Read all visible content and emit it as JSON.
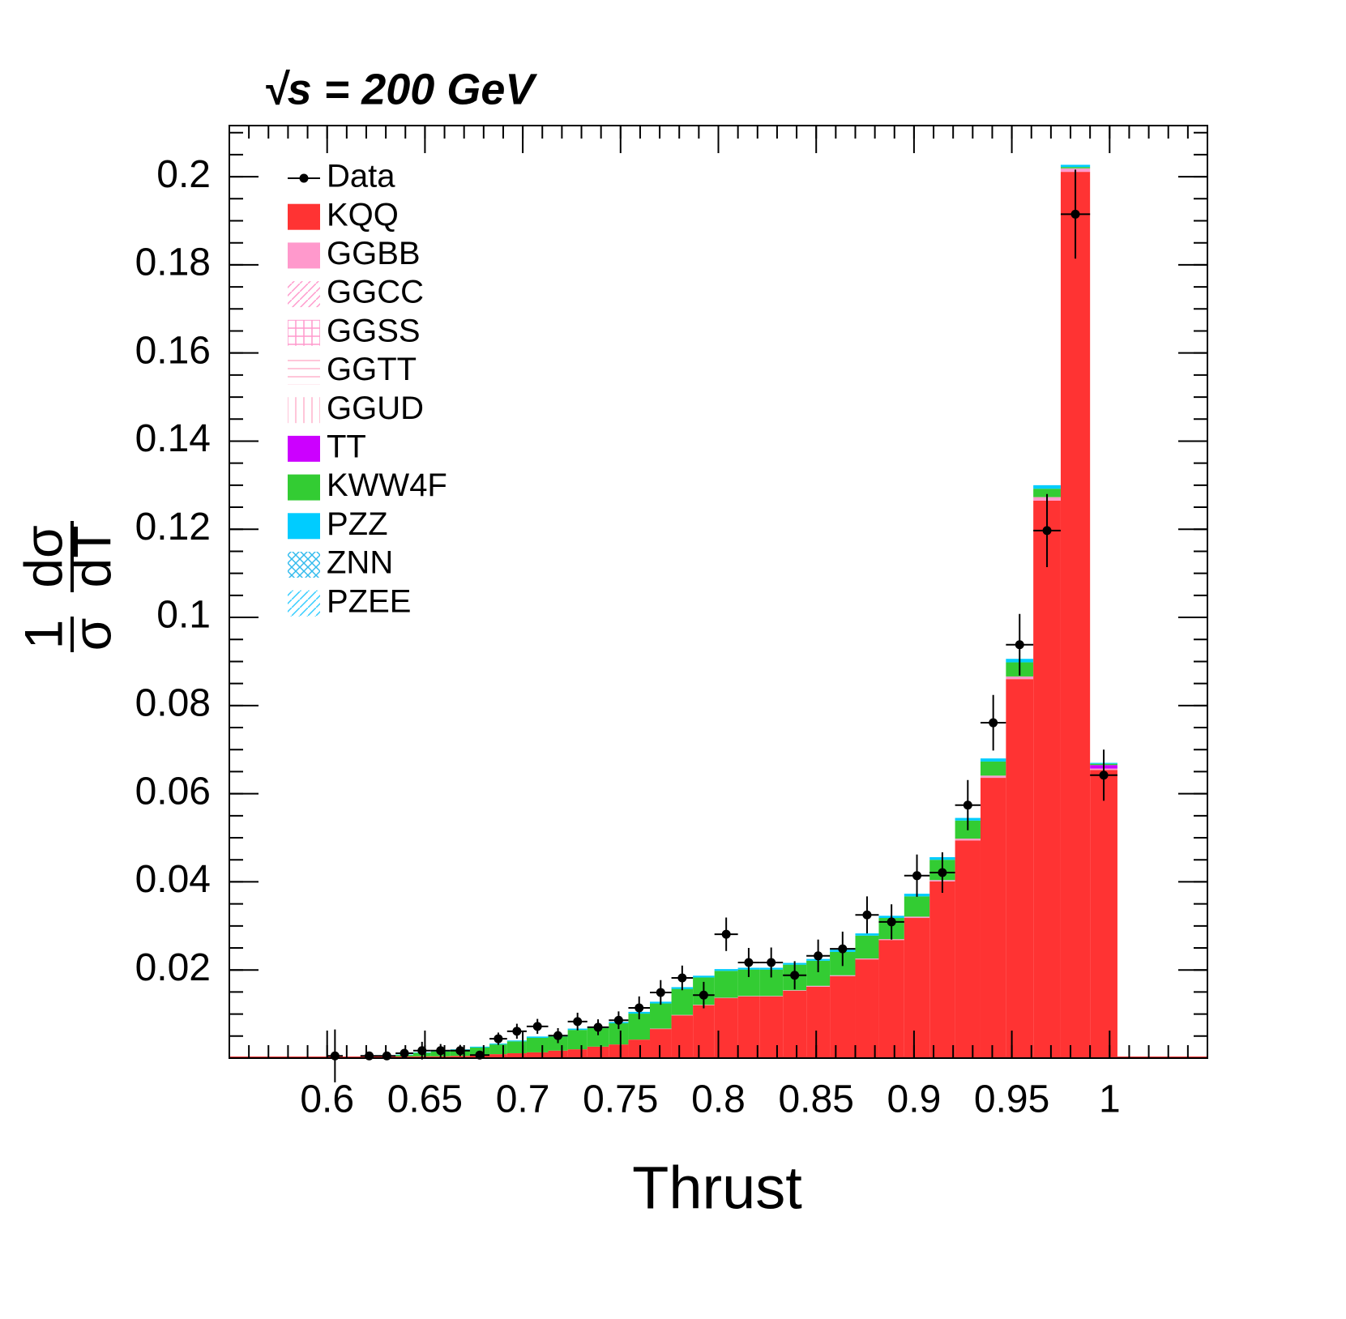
{
  "chart_data": {
    "type": "histogram",
    "stacked": true,
    "annotation": "√s = 200 GeV",
    "xlabel": "Thrust",
    "ylabel": {
      "left_num": "1",
      "left_den": "σ",
      "right_num": "dσ",
      "right_den": "dT"
    },
    "xlim": [
      0.55,
      1.05
    ],
    "ylim": [
      0,
      0.2116
    ],
    "xticks": [
      0.6,
      0.65,
      0.7,
      0.75,
      0.8,
      0.85,
      0.9,
      0.95,
      1
    ],
    "yticks": [
      0.02,
      0.04,
      0.06,
      0.08,
      0.1,
      0.12,
      0.14,
      0.16,
      0.18,
      0.2
    ],
    "xminor_step": 0.01,
    "yminor_step": 0.005,
    "legend": "top-left",
    "bins": [
      0.6,
      0.608,
      0.617,
      0.626,
      0.635,
      0.644,
      0.653,
      0.663,
      0.673,
      0.683,
      0.692,
      0.702,
      0.713,
      0.723,
      0.733,
      0.744,
      0.754,
      0.765,
      0.776,
      0.787,
      0.798,
      0.81,
      0.821,
      0.833,
      0.845,
      0.857,
      0.87,
      0.882,
      0.895,
      0.908,
      0.921,
      0.934,
      0.947,
      0.961,
      0.975,
      0.99,
      1.004
    ],
    "data": {
      "name": "Data",
      "color": "#000000",
      "values": [
        0.0005,
        null,
        0.0005,
        0.0005,
        0.0011,
        0.0017,
        0.0017,
        0.0017,
        0.0007,
        0.0044,
        0.0061,
        0.0072,
        0.0051,
        0.0083,
        0.007,
        0.0086,
        0.0114,
        0.0149,
        0.0182,
        0.0143,
        0.0281,
        0.0217,
        0.0217,
        0.0188,
        0.0232,
        0.0248,
        0.0325,
        0.0309,
        0.0414,
        0.0421,
        0.0574,
        0.0761,
        0.0938,
        0.1197,
        0.1915,
        0.0642
      ],
      "errors": [
        0.006,
        null,
        0.0005,
        0.0005,
        0.001,
        0.002,
        0.0015,
        0.0013,
        0.0007,
        0.0014,
        0.0017,
        0.0017,
        0.0017,
        0.002,
        0.0018,
        0.002,
        0.0026,
        0.0028,
        0.0028,
        0.003,
        0.0038,
        0.0033,
        0.0034,
        0.0032,
        0.0037,
        0.0039,
        0.0042,
        0.004,
        0.0048,
        0.0046,
        0.0057,
        0.0063,
        0.007,
        0.0083,
        0.0101,
        0.0058
      ]
    },
    "series": [
      {
        "name": "KQQ",
        "color": "#ff3333",
        "pattern": "solid",
        "values": [
          0,
          0.0001,
          0.0002,
          0.0002,
          0.0002,
          0.0004,
          0.0004,
          0.0005,
          0.0007,
          0.0009,
          0.0011,
          0.0013,
          0.0017,
          0.002,
          0.0026,
          0.0031,
          0.0042,
          0.0066,
          0.0097,
          0.012,
          0.0136,
          0.014,
          0.014,
          0.0153,
          0.0162,
          0.0186,
          0.0224,
          0.0268,
          0.0318,
          0.0401,
          0.0494,
          0.0636,
          0.086,
          0.1265,
          0.2011,
          0.0654
        ]
      },
      {
        "name": "GGBB",
        "color": "#ff99cc",
        "pattern": "solid",
        "values": [
          0,
          0,
          0,
          0,
          0,
          0,
          0,
          0,
          0,
          0,
          0,
          0,
          0,
          0,
          0,
          0,
          0,
          0.0001,
          0.0001,
          0.0001,
          0.0001,
          0.0001,
          0.0001,
          0.0001,
          0.0002,
          0.0002,
          0.0002,
          0.0002,
          0.0003,
          0.0003,
          0.0004,
          0.0005,
          0.0006,
          0.0008,
          0.0008,
          0.0003
        ]
      },
      {
        "name": "GGCC",
        "color": "#ff99cc",
        "pattern": "diagonal",
        "values": [
          0,
          0,
          0,
          0,
          0,
          0,
          0,
          0,
          0,
          0,
          0,
          0,
          0,
          0,
          0,
          0,
          0,
          0,
          0,
          0,
          0,
          0,
          0,
          0,
          0,
          0,
          0,
          0,
          0,
          0,
          0,
          0,
          0,
          0,
          0,
          0
        ]
      },
      {
        "name": "GGSS",
        "color": "#ff99cc",
        "pattern": "cross",
        "values": [
          0,
          0,
          0,
          0,
          0,
          0,
          0,
          0,
          0,
          0,
          0,
          0,
          0,
          0,
          0,
          0,
          0,
          0,
          0,
          0,
          0,
          0,
          0,
          0,
          0,
          0,
          0,
          0,
          0,
          0,
          0,
          0,
          0,
          0,
          0,
          0
        ]
      },
      {
        "name": "GGTT",
        "color": "#ffb3cc",
        "pattern": "horizontal",
        "values": [
          0,
          0,
          0,
          0,
          0,
          0,
          0,
          0,
          0,
          0,
          0,
          0,
          0,
          0,
          0,
          0,
          0,
          0,
          0,
          0,
          0,
          0,
          0,
          0,
          0,
          0,
          0,
          0,
          0,
          0,
          0,
          0,
          0,
          0,
          0,
          0
        ]
      },
      {
        "name": "GGUD",
        "color": "#ffb3cc",
        "pattern": "vertical",
        "values": [
          0,
          0,
          0,
          0,
          0,
          0,
          0,
          0,
          0,
          0,
          0,
          0,
          0,
          0,
          0,
          0,
          0,
          0,
          0,
          0,
          0,
          0,
          0,
          0,
          0,
          0,
          0,
          0,
          0,
          0,
          0,
          0,
          0,
          0,
          0,
          0
        ]
      },
      {
        "name": "TT",
        "color": "#cc00ff",
        "pattern": "solid",
        "values": [
          0,
          0,
          0,
          0,
          0,
          0,
          0,
          0,
          0,
          0,
          0,
          0,
          0,
          0,
          0,
          0,
          0,
          0,
          0,
          0,
          0,
          0,
          0,
          0,
          0,
          0,
          0,
          0,
          0,
          0,
          0,
          0,
          0,
          0,
          0,
          0.0008
        ]
      },
      {
        "name": "KWW4F",
        "color": "#33cc33",
        "pattern": "solid",
        "values": [
          0,
          0,
          0.0001,
          0.0003,
          0.0005,
          0.0008,
          0.0011,
          0.0014,
          0.0017,
          0.0022,
          0.0027,
          0.0033,
          0.0032,
          0.0044,
          0.0042,
          0.0048,
          0.0059,
          0.0057,
          0.0059,
          0.0062,
          0.0061,
          0.006,
          0.006,
          0.0058,
          0.0057,
          0.0053,
          0.0052,
          0.0048,
          0.0046,
          0.0046,
          0.0041,
          0.0032,
          0.0032,
          0.0019,
          0.0003,
          0.0003
        ]
      },
      {
        "name": "PZZ",
        "color": "#00ccff",
        "pattern": "solid",
        "values": [
          0,
          0,
          0,
          0,
          0.0001,
          0.0001,
          0.0001,
          0.0001,
          0.0002,
          0.0002,
          0.0002,
          0.0003,
          0.0003,
          0.0003,
          0.0003,
          0.0003,
          0.0004,
          0.0004,
          0.0004,
          0.0004,
          0.0004,
          0.0004,
          0.0004,
          0.0004,
          0.0004,
          0.0005,
          0.0005,
          0.0005,
          0.0006,
          0.0006,
          0.0006,
          0.0007,
          0.0008,
          0.0008,
          0.0005,
          0.0002
        ]
      },
      {
        "name": "ZNN",
        "color": "#33bbee",
        "pattern": "crosshatch",
        "values": [
          0,
          0,
          0,
          0,
          0,
          0,
          0,
          0,
          0,
          0,
          0,
          0,
          0,
          0,
          0,
          0,
          0,
          0,
          0,
          0,
          0,
          0,
          0,
          0,
          0,
          0,
          0,
          0,
          0,
          0,
          0,
          0,
          0,
          0,
          0,
          0
        ]
      },
      {
        "name": "PZEE",
        "color": "#33ccff",
        "pattern": "diagonal",
        "values": [
          0,
          0,
          0,
          0,
          0,
          0,
          0,
          0,
          0,
          0,
          0,
          0,
          0,
          0,
          0,
          0,
          0,
          0,
          0,
          0,
          0,
          0,
          0,
          0,
          0,
          0,
          0,
          0,
          0,
          0,
          0,
          0,
          0,
          0,
          0,
          0
        ]
      }
    ]
  }
}
